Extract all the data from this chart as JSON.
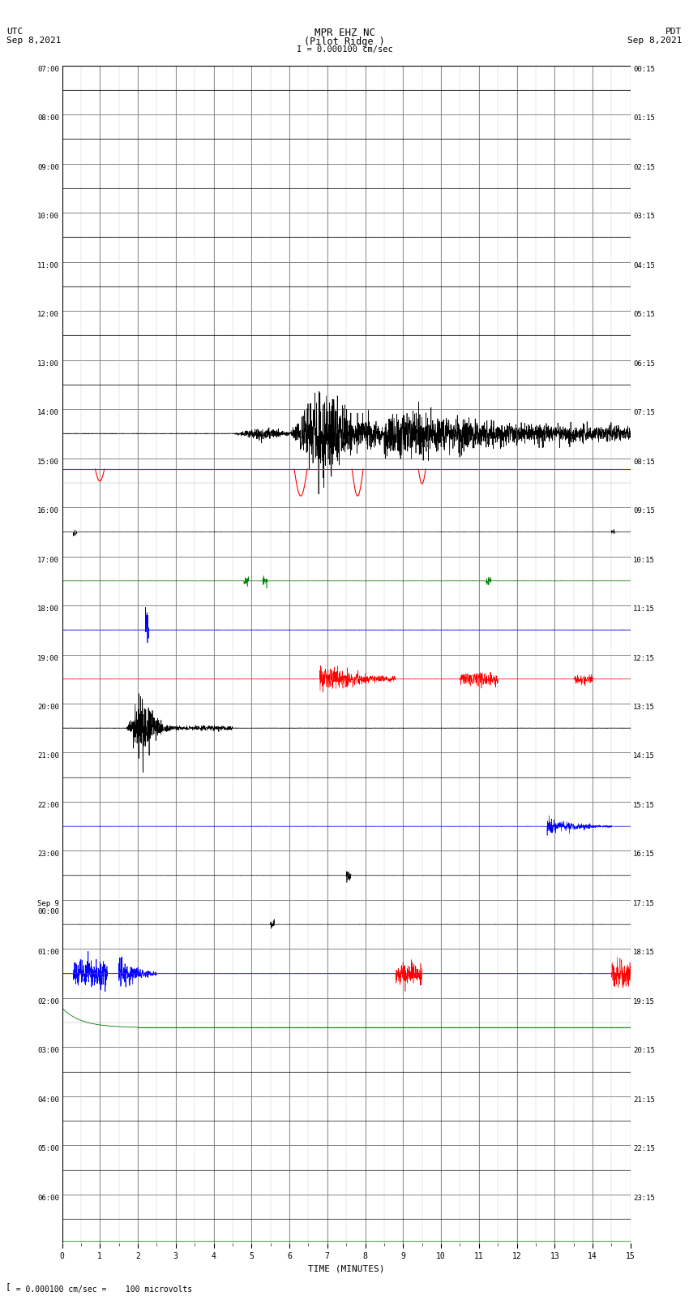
{
  "title_line1": "MPR EHZ NC",
  "title_line2": "(Pilot Ridge )",
  "title_line3": "I = 0.000100 cm/sec",
  "left_header_line1": "UTC",
  "left_header_line2": "Sep 8,2021",
  "right_header_line1": "PDT",
  "right_header_line2": "Sep 8,2021",
  "footer_text": "= 0.000100 cm/sec =    100 microvolts",
  "utc_labels": [
    "07:00",
    "08:00",
    "09:00",
    "10:00",
    "11:00",
    "12:00",
    "13:00",
    "14:00",
    "15:00",
    "16:00",
    "17:00",
    "18:00",
    "19:00",
    "20:00",
    "21:00",
    "22:00",
    "23:00",
    "Sep 9\n00:00",
    "01:00",
    "02:00",
    "03:00",
    "04:00",
    "05:00",
    "06:00"
  ],
  "pdt_labels": [
    "00:15",
    "01:15",
    "02:15",
    "03:15",
    "04:15",
    "05:15",
    "06:15",
    "07:15",
    "08:15",
    "09:15",
    "10:15",
    "11:15",
    "12:15",
    "13:15",
    "14:15",
    "15:15",
    "16:15",
    "17:15",
    "18:15",
    "19:15",
    "20:15",
    "21:15",
    "22:15",
    "23:15"
  ],
  "n_rows": 24,
  "x_min": 0,
  "x_max": 15,
  "background_color": "#ffffff",
  "xlabel": "TIME (MINUTES)"
}
